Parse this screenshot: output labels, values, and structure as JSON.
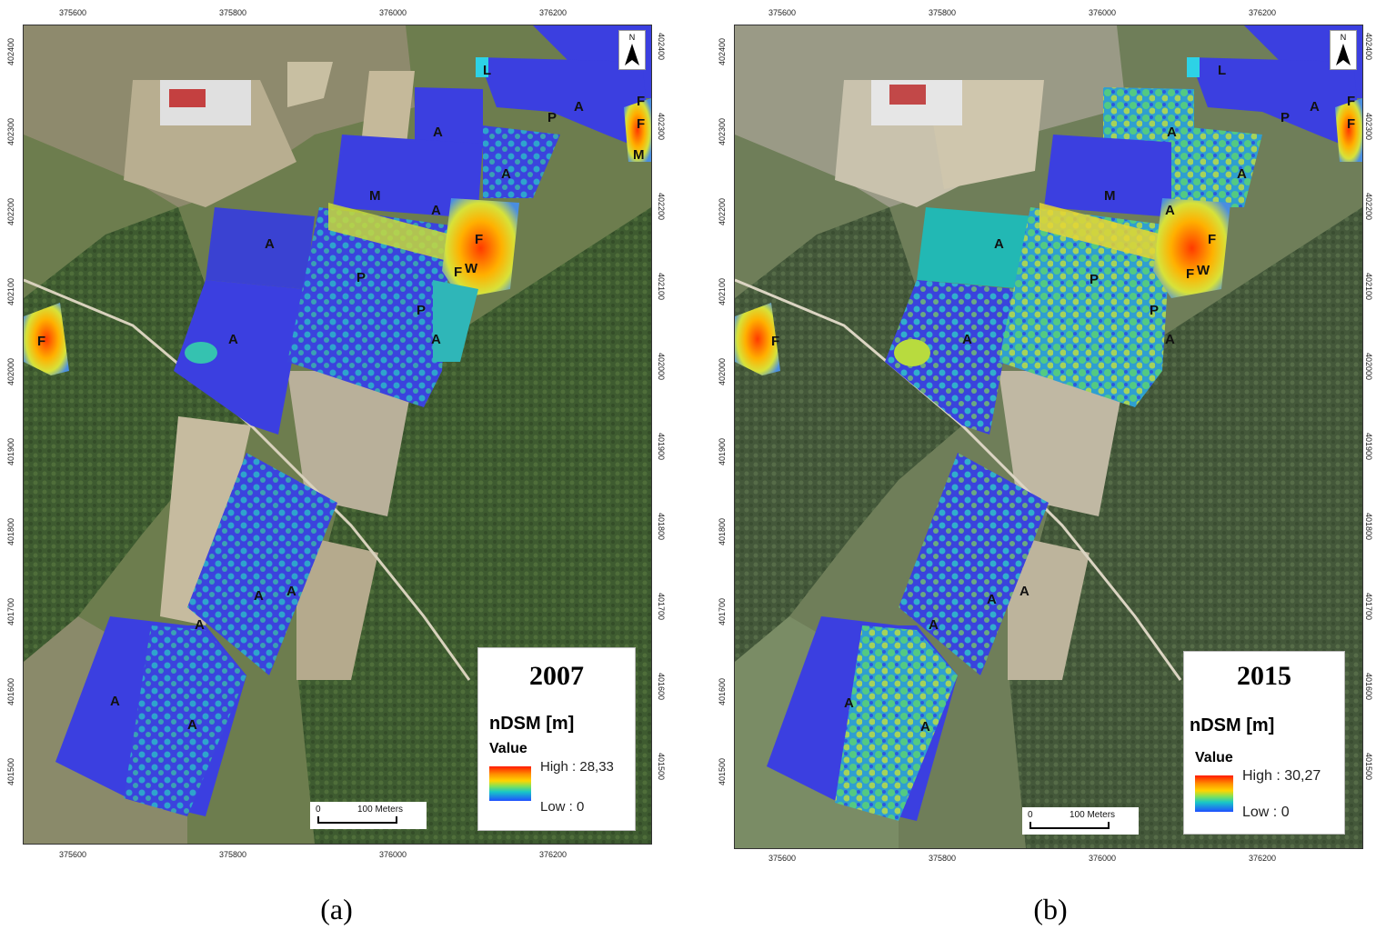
{
  "figures": [
    {
      "id": "a",
      "caption": "(a)",
      "year": "2007",
      "legend": {
        "title": "nDSM [m]",
        "value_label": "Value",
        "high": "High : 28,33",
        "low": "Low : 0"
      },
      "scalebar": {
        "zero": "0",
        "length": "100 Meters"
      },
      "north_label": "N",
      "x_ticks": [
        "375600",
        "375800",
        "376000",
        "376200"
      ],
      "y_ticks": [
        "402400",
        "402300",
        "402200",
        "402100",
        "402000",
        "401900",
        "401800",
        "401700",
        "401600",
        "401500"
      ]
    },
    {
      "id": "b",
      "caption": "(b)",
      "year": "2015",
      "legend": {
        "title": "nDSM [m]",
        "value_label": "Value",
        "high": "High : 30,27",
        "low": "Low :  0"
      },
      "scalebar": {
        "zero": "0",
        "length": "100 Meters"
      },
      "north_label": "N",
      "x_ticks": [
        "375600",
        "375800",
        "376000",
        "376200"
      ],
      "y_ticks": [
        "402400",
        "402300",
        "402200",
        "402100",
        "402000",
        "401900",
        "401800",
        "401700",
        "401600",
        "401500"
      ]
    }
  ],
  "parcel_labels": [
    "A",
    "M",
    "P",
    "F",
    "W",
    "L"
  ],
  "colors": {
    "low_ndsm": "#3b3fe0",
    "high_ndsm": "#ff2a00",
    "mid_ndsm": "#ffd500",
    "forest": "#3d5a2e",
    "field": "#b9b09a"
  }
}
